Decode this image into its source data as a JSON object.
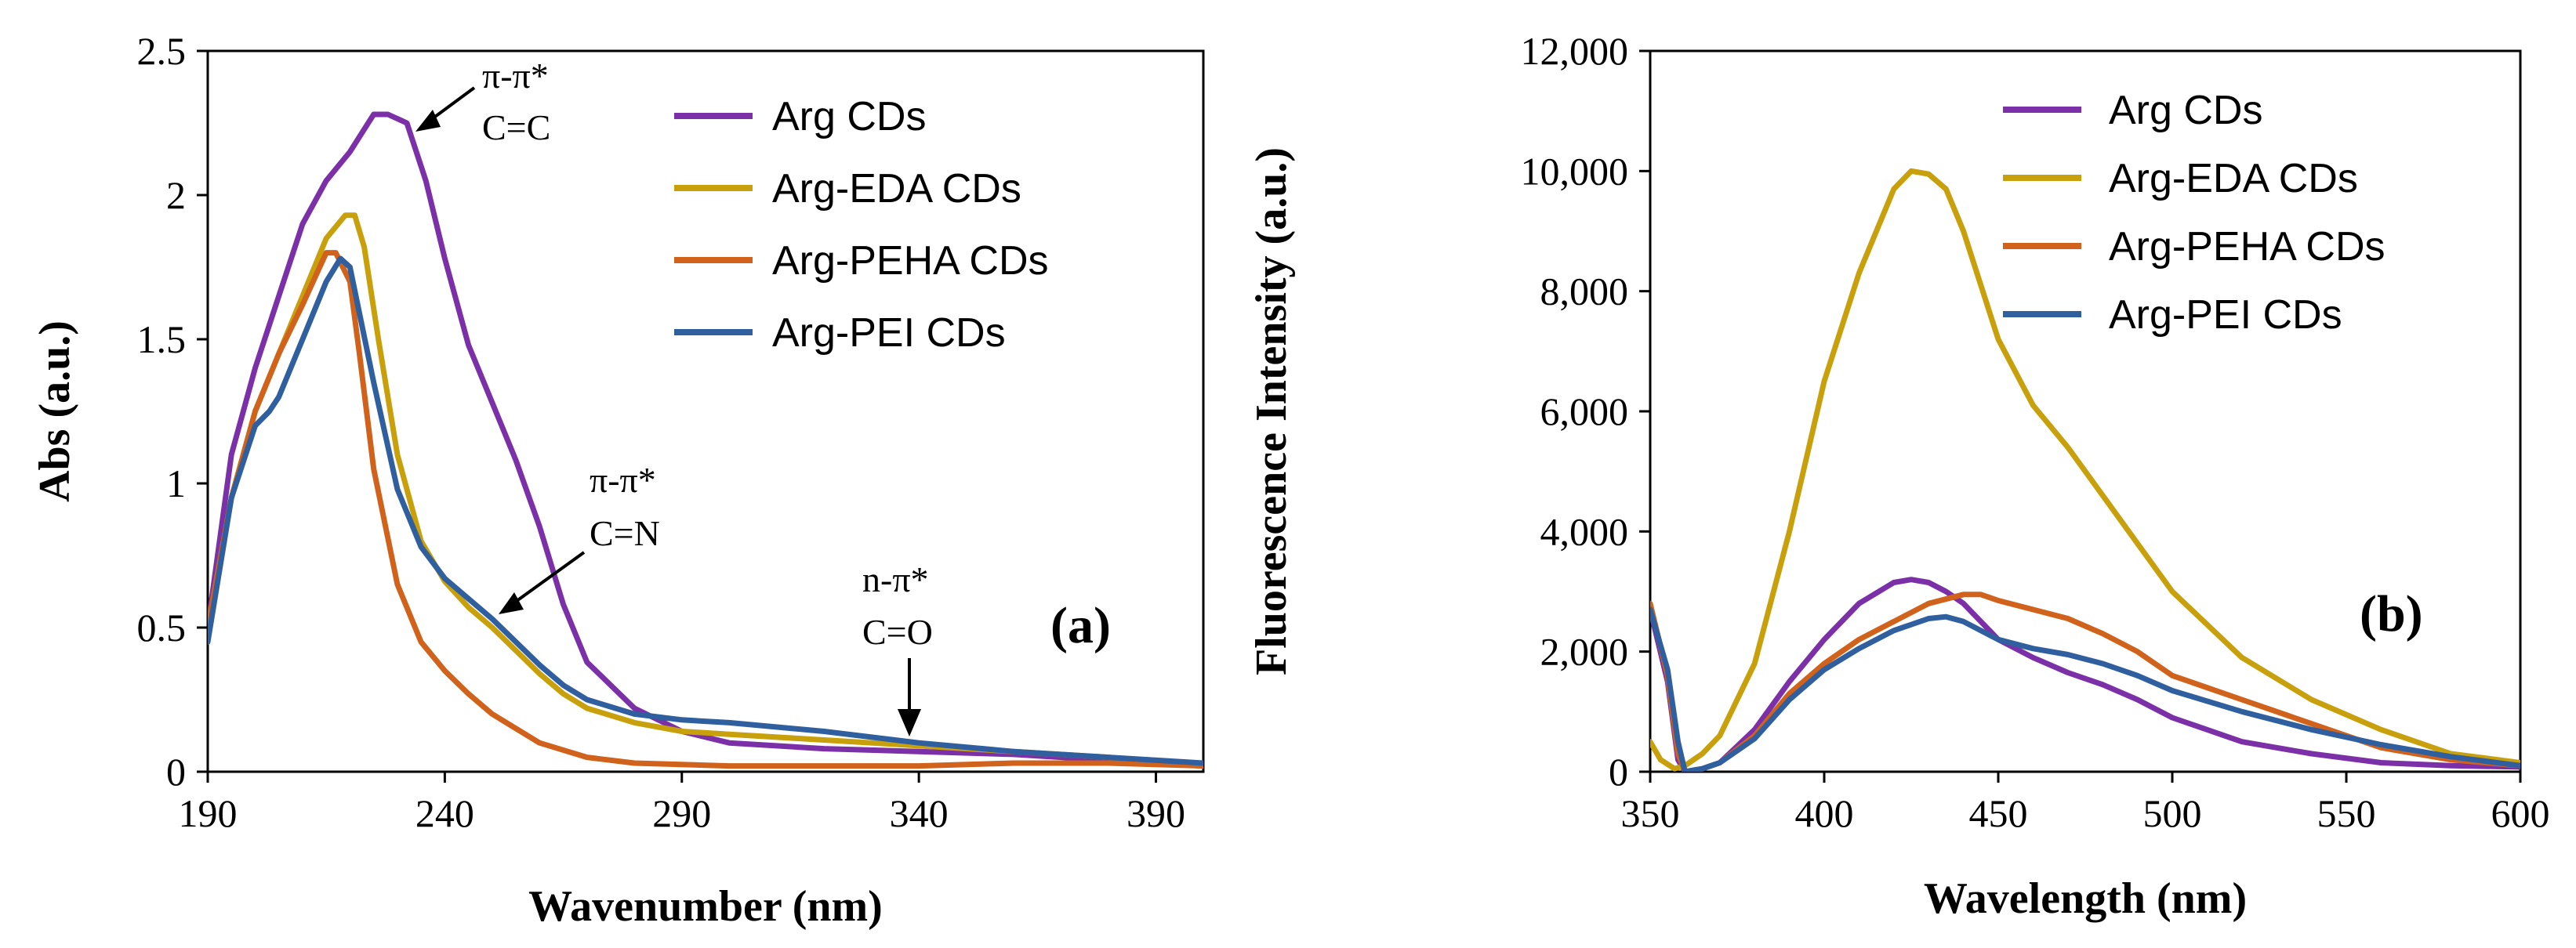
{
  "chart_data": [
    {
      "panel": "a",
      "type": "line",
      "panel_label": "(a)",
      "xlabel": "Wavenumber (nm)",
      "ylabel": "Abs (a.u.)",
      "xlim": [
        190,
        400
      ],
      "ylim": [
        0,
        2.5
      ],
      "xticks": [
        "190",
        "240",
        "290",
        "340",
        "390"
      ],
      "yticks": [
        "0",
        "0.5",
        "1",
        "1.5",
        "2",
        "2.5"
      ],
      "legend_position": "top-right",
      "series": [
        {
          "name": "Arg CDs",
          "color": "#7b30a8",
          "x": [
            190,
            195,
            200,
            205,
            210,
            215,
            220,
            225,
            228,
            232,
            236,
            240,
            245,
            250,
            255,
            260,
            265,
            270,
            280,
            290,
            300,
            320,
            340,
            360,
            380,
            400
          ],
          "y": [
            0.5,
            1.1,
            1.4,
            1.65,
            1.9,
            2.05,
            2.15,
            2.28,
            2.28,
            2.25,
            2.05,
            1.78,
            1.48,
            1.28,
            1.08,
            0.85,
            0.58,
            0.38,
            0.22,
            0.14,
            0.1,
            0.08,
            0.07,
            0.06,
            0.04,
            0.02
          ]
        },
        {
          "name": "Arg-EDA CDs",
          "color": "#c8a00c",
          "x": [
            190,
            195,
            200,
            205,
            210,
            215,
            219,
            221,
            223,
            226,
            230,
            235,
            240,
            245,
            250,
            255,
            260,
            265,
            270,
            280,
            290,
            300,
            320,
            340,
            360,
            380,
            400
          ],
          "y": [
            0.5,
            0.95,
            1.25,
            1.45,
            1.65,
            1.85,
            1.93,
            1.93,
            1.82,
            1.5,
            1.1,
            0.8,
            0.66,
            0.57,
            0.5,
            0.42,
            0.34,
            0.27,
            0.22,
            0.17,
            0.14,
            0.13,
            0.11,
            0.09,
            0.07,
            0.05,
            0.02
          ]
        },
        {
          "name": "Arg-PEHA CDs",
          "color": "#d0621c",
          "x": [
            190,
            195,
            200,
            205,
            210,
            215,
            217,
            220,
            222,
            225,
            230,
            235,
            240,
            245,
            250,
            260,
            270,
            280,
            300,
            320,
            340,
            360,
            380,
            400
          ],
          "y": [
            0.5,
            0.95,
            1.25,
            1.45,
            1.62,
            1.8,
            1.8,
            1.7,
            1.45,
            1.05,
            0.65,
            0.45,
            0.35,
            0.27,
            0.2,
            0.1,
            0.05,
            0.03,
            0.02,
            0.02,
            0.02,
            0.03,
            0.03,
            0.02
          ]
        },
        {
          "name": "Arg-PEI CDs",
          "color": "#2f5f9e",
          "x": [
            190,
            195,
            200,
            203,
            205,
            210,
            215,
            218,
            220,
            225,
            230,
            235,
            240,
            245,
            250,
            255,
            260,
            265,
            270,
            280,
            290,
            300,
            320,
            340,
            360,
            380,
            400
          ],
          "y": [
            0.45,
            0.95,
            1.2,
            1.25,
            1.3,
            1.5,
            1.7,
            1.78,
            1.75,
            1.35,
            0.98,
            0.78,
            0.67,
            0.6,
            0.53,
            0.45,
            0.37,
            0.3,
            0.25,
            0.2,
            0.18,
            0.17,
            0.14,
            0.1,
            0.07,
            0.05,
            0.03
          ]
        }
      ],
      "annotations": [
        {
          "lines": [
            "π-π*",
            "C=C"
          ]
        },
        {
          "lines": [
            "π-π*",
            "C=N"
          ]
        },
        {
          "lines": [
            "n-π*",
            "C=O"
          ]
        }
      ]
    },
    {
      "panel": "b",
      "type": "line",
      "panel_label": "(b)",
      "xlabel": "Wavelength (nm)",
      "ylabel": "Fluorescence Intensity (a.u.)",
      "xlim": [
        350,
        600
      ],
      "ylim": [
        0,
        12000
      ],
      "xticks": [
        "350",
        "400",
        "450",
        "500",
        "550",
        "600"
      ],
      "yticks": [
        "0",
        "2,000",
        "4,000",
        "6,000",
        "8,000",
        "10,000",
        "12,000"
      ],
      "legend_position": "top-right",
      "series": [
        {
          "name": "Arg CDs",
          "color": "#7b30a8",
          "x": [
            350,
            355,
            358,
            360,
            365,
            370,
            380,
            390,
            400,
            410,
            420,
            425,
            430,
            435,
            440,
            450,
            460,
            470,
            480,
            490,
            500,
            520,
            540,
            560,
            580,
            600
          ],
          "y": [
            2700,
            1500,
            200,
            0,
            50,
            150,
            700,
            1500,
            2200,
            2800,
            3150,
            3200,
            3150,
            3000,
            2800,
            2200,
            1900,
            1650,
            1450,
            1200,
            900,
            500,
            300,
            150,
            100,
            80
          ]
        },
        {
          "name": "Arg-EDA CDs",
          "color": "#c8a00c",
          "x": [
            350,
            353,
            357,
            360,
            365,
            370,
            375,
            380,
            390,
            400,
            410,
            420,
            425,
            430,
            435,
            440,
            450,
            460,
            470,
            480,
            490,
            500,
            520,
            540,
            560,
            580,
            600
          ],
          "y": [
            500,
            200,
            50,
            100,
            300,
            600,
            1200,
            1800,
            4000,
            6500,
            8300,
            9700,
            10000,
            9950,
            9700,
            9000,
            7200,
            6100,
            5400,
            4600,
            3800,
            3000,
            1900,
            1200,
            700,
            300,
            150
          ]
        },
        {
          "name": "Arg-PEHA CDs",
          "color": "#d0621c",
          "x": [
            350,
            355,
            358,
            360,
            365,
            370,
            380,
            390,
            400,
            410,
            420,
            430,
            440,
            445,
            450,
            460,
            470,
            480,
            490,
            500,
            520,
            540,
            560,
            580,
            600
          ],
          "y": [
            2800,
            1600,
            300,
            0,
            50,
            150,
            600,
            1300,
            1800,
            2200,
            2500,
            2800,
            2950,
            2950,
            2850,
            2700,
            2550,
            2300,
            2000,
            1600,
            1200,
            800,
            400,
            200,
            100
          ]
        },
        {
          "name": "Arg-PEI CDs",
          "color": "#2f5f9e",
          "x": [
            350,
            355,
            358,
            360,
            365,
            370,
            380,
            390,
            400,
            410,
            420,
            430,
            435,
            440,
            450,
            460,
            470,
            480,
            490,
            500,
            520,
            540,
            560,
            580,
            600
          ],
          "y": [
            2700,
            1700,
            500,
            0,
            50,
            150,
            550,
            1200,
            1700,
            2050,
            2350,
            2550,
            2580,
            2500,
            2200,
            2050,
            1950,
            1800,
            1600,
            1350,
            1000,
            700,
            450,
            250,
            100
          ]
        }
      ]
    }
  ]
}
